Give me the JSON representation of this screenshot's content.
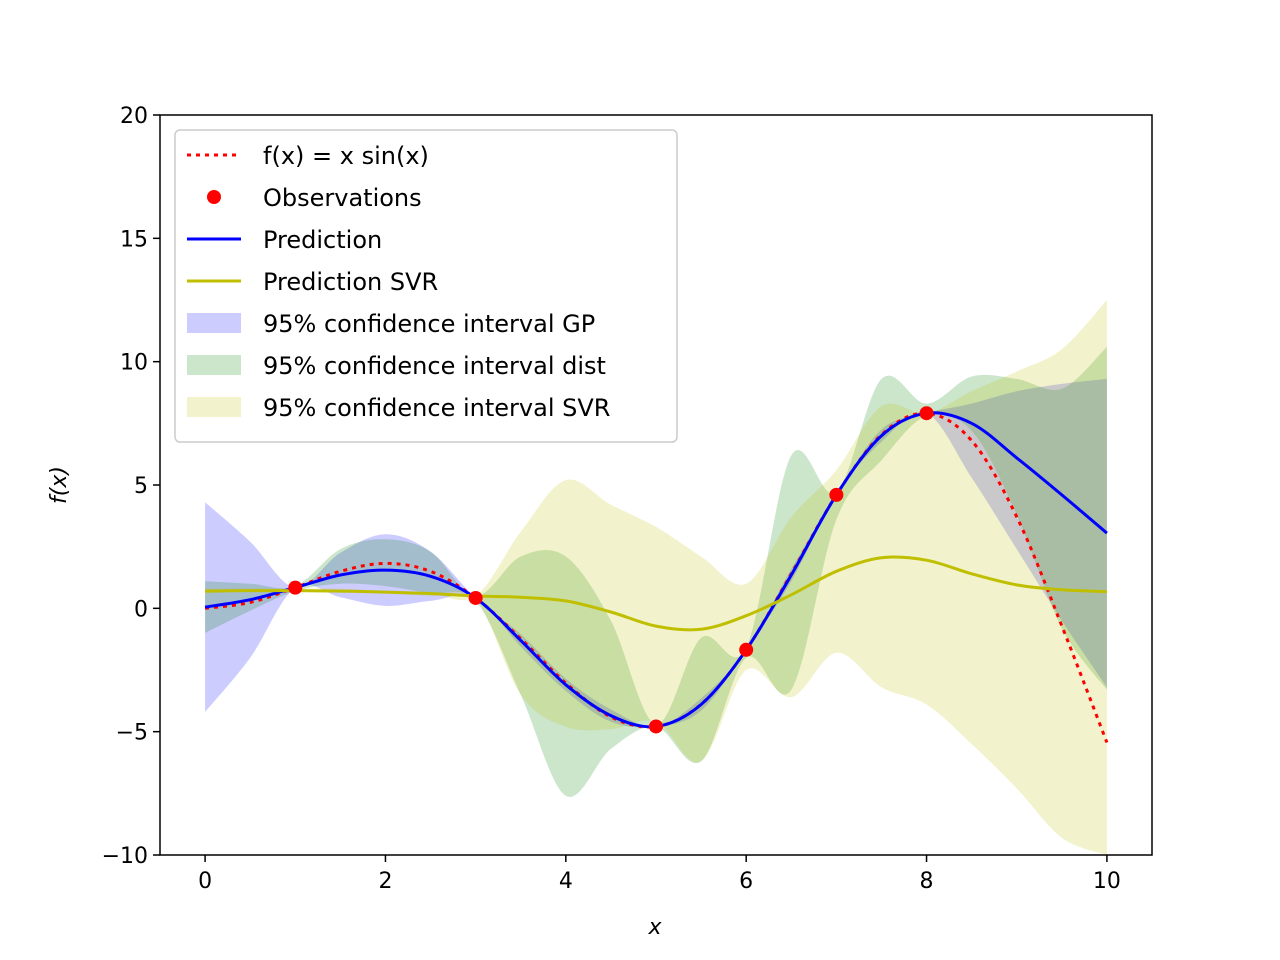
{
  "chart_data": {
    "type": "line",
    "title": "",
    "xlabel": "x",
    "ylabel": "f(x)",
    "xlim": [
      -0.5,
      10.5
    ],
    "ylim": [
      -10,
      20
    ],
    "xticks": [
      0,
      2,
      4,
      6,
      8,
      10
    ],
    "yticks": [
      -10,
      -5,
      0,
      5,
      10,
      15,
      20
    ],
    "xtick_labels": [
      "0",
      "2",
      "4",
      "6",
      "8",
      "10"
    ],
    "ytick_labels": [
      "−10",
      "−5",
      "0",
      "5",
      "10",
      "15",
      "20"
    ],
    "grid": false,
    "legend_position": "top-left",
    "observations": {
      "name": "Observations",
      "color": "#ff0000",
      "x": [
        1,
        3,
        5,
        6,
        7,
        8
      ],
      "y": [
        0.84,
        0.42,
        -4.79,
        -1.68,
        4.6,
        7.91
      ]
    },
    "series": [
      {
        "name": "f(x) = x sin(x)",
        "style": "dotted",
        "color": "#ff0000",
        "x": [
          0,
          0.5,
          1,
          1.5,
          2,
          2.5,
          3,
          3.5,
          4,
          4.5,
          5,
          5.5,
          6,
          6.5,
          7,
          7.5,
          8,
          8.5,
          9,
          9.5,
          10
        ],
        "y": [
          0,
          0.24,
          0.84,
          1.5,
          1.82,
          1.5,
          0.42,
          -1.23,
          -3.03,
          -4.4,
          -4.79,
          -3.89,
          -1.68,
          1.4,
          4.6,
          7.04,
          7.91,
          6.8,
          3.71,
          -0.71,
          -5.44
        ]
      },
      {
        "name": "Prediction",
        "style": "solid",
        "color": "#0000ff",
        "x": [
          0,
          0.5,
          1,
          1.5,
          2,
          2.5,
          3,
          3.5,
          4,
          4.5,
          5,
          5.5,
          6,
          6.5,
          7,
          7.5,
          8,
          8.5,
          9,
          9.5,
          10
        ],
        "y": [
          0.05,
          0.35,
          0.84,
          1.35,
          1.55,
          1.3,
          0.42,
          -1.3,
          -3.1,
          -4.35,
          -4.79,
          -3.9,
          -1.68,
          1.35,
          4.6,
          7.0,
          7.91,
          7.5,
          6.1,
          4.6,
          3.05
        ]
      },
      {
        "name": "Prediction SVR",
        "style": "solid",
        "color": "#bfbf00",
        "x": [
          0,
          0.5,
          1,
          1.5,
          2,
          2.5,
          3,
          3.5,
          4,
          4.5,
          5,
          5.5,
          6,
          6.5,
          7,
          7.5,
          8,
          8.5,
          9,
          9.5,
          10
        ],
        "y": [
          0.7,
          0.72,
          0.72,
          0.7,
          0.66,
          0.6,
          0.5,
          0.45,
          0.3,
          -0.15,
          -0.72,
          -0.85,
          -0.3,
          0.55,
          1.5,
          2.05,
          1.95,
          1.4,
          0.95,
          0.75,
          0.68
        ]
      }
    ],
    "bands": [
      {
        "name": "95% confidence interval GP",
        "color": "#0000ff",
        "opacity": 0.2,
        "x": [
          0,
          0.5,
          1,
          1.5,
          2,
          2.5,
          3,
          3.5,
          4,
          4.5,
          5,
          5.5,
          6,
          6.5,
          7,
          7.5,
          8,
          8.5,
          9,
          9.5,
          10
        ],
        "lower": [
          -4.2,
          -2.0,
          0.84,
          0.45,
          0.1,
          0.3,
          0.42,
          -1.55,
          -3.35,
          -4.6,
          -4.79,
          -4.15,
          -1.68,
          1.1,
          4.6,
          6.75,
          7.91,
          5.3,
          2.4,
          -0.5,
          -3.2
        ],
        "upper": [
          4.3,
          2.7,
          0.84,
          2.25,
          3.0,
          2.3,
          0.42,
          -1.05,
          -2.85,
          -4.1,
          -4.79,
          -3.65,
          -1.68,
          1.6,
          4.6,
          7.25,
          7.91,
          8.3,
          8.8,
          9.1,
          9.3
        ]
      },
      {
        "name": "95% confidence interval dist",
        "color": "#008000",
        "opacity": 0.2,
        "x": [
          0,
          0.5,
          1,
          1.5,
          2,
          2.5,
          3,
          3.5,
          4,
          4.5,
          5,
          5.5,
          6,
          6.5,
          7,
          7.5,
          8,
          8.5,
          9,
          9.5,
          10
        ],
        "lower": [
          -1.0,
          -0.1,
          0.7,
          1.0,
          0.9,
          0.6,
          0.3,
          -3.5,
          -7.6,
          -5.7,
          -4.8,
          -6.2,
          -2.0,
          -3.3,
          3.6,
          6.0,
          7.8,
          7.2,
          3.8,
          -0.8,
          -3.3
        ],
        "upper": [
          1.1,
          1.0,
          0.9,
          2.4,
          2.8,
          2.3,
          0.5,
          2.1,
          2.1,
          -0.5,
          -4.7,
          -1.2,
          -1.6,
          6.2,
          4.7,
          9.3,
          8.3,
          9.4,
          9.3,
          8.9,
          10.6
        ]
      },
      {
        "name": "95% confidence interval SVR",
        "color": "#bfbf00",
        "opacity": 0.2,
        "x": [
          0,
          0.5,
          1,
          1.5,
          2,
          2.5,
          3,
          3.5,
          4,
          4.5,
          5,
          5.5,
          6,
          6.5,
          7,
          7.5,
          8,
          8.5,
          9,
          9.5,
          10
        ],
        "lower": [
          0.6,
          0.7,
          0.7,
          0.7,
          0.6,
          0.5,
          0.4,
          -3.5,
          -4.8,
          -4.9,
          -4.6,
          -6.2,
          -2.5,
          -3.6,
          -1.8,
          -3.2,
          -3.9,
          -5.5,
          -7.3,
          -9.3,
          -10.0
        ],
        "upper": [
          0.8,
          0.8,
          0.8,
          0.8,
          0.7,
          0.6,
          0.5,
          3.1,
          5.2,
          4.2,
          3.3,
          2.1,
          1.0,
          3.7,
          5.6,
          8.2,
          7.9,
          8.8,
          9.6,
          10.5,
          12.5
        ]
      }
    ],
    "legend": [
      {
        "label": "f(x) = x sin(x)",
        "kind": "dotted-line",
        "color": "#ff0000"
      },
      {
        "label": "Observations",
        "kind": "marker",
        "color": "#ff0000"
      },
      {
        "label": "Prediction",
        "kind": "line",
        "color": "#0000ff"
      },
      {
        "label": "Prediction SVR",
        "kind": "line",
        "color": "#bfbf00"
      },
      {
        "label": "95% confidence interval GP",
        "kind": "patch",
        "color": "#0000ff"
      },
      {
        "label": "95% confidence interval dist",
        "kind": "patch",
        "color": "#008000"
      },
      {
        "label": "95% confidence interval SVR",
        "kind": "patch",
        "color": "#bfbf00"
      }
    ]
  }
}
